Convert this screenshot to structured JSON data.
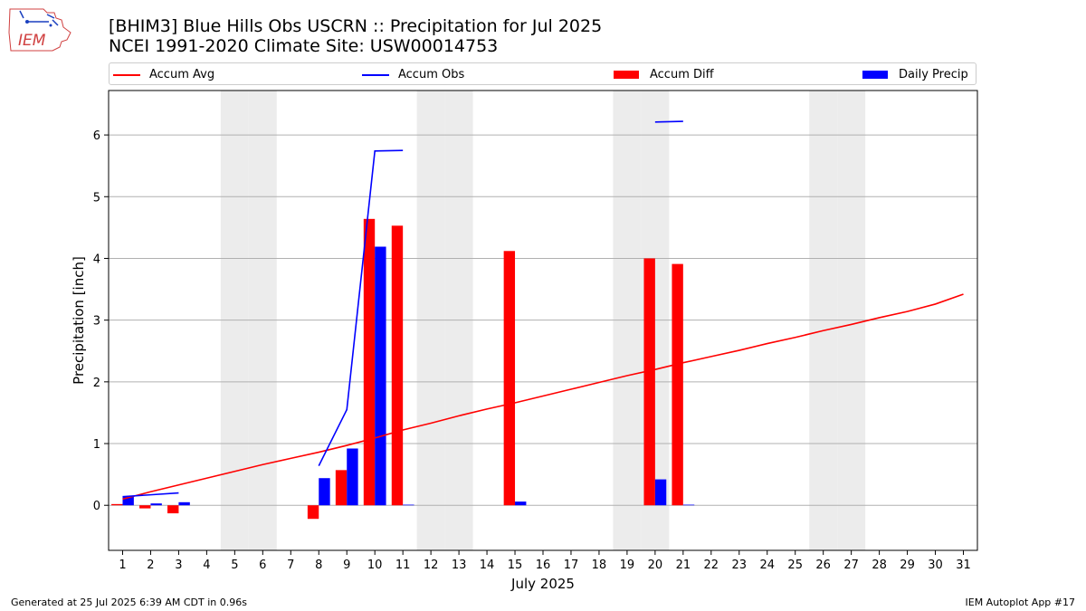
{
  "header": {
    "title_line1": "[BHIM3] Blue Hills Obs USCRN :: Precipitation for Jul 2025",
    "title_line2": "NCEI 1991-2020 Climate Site: USW00014753",
    "logo_text": "IEM"
  },
  "legend": {
    "accum_avg": "Accum Avg",
    "accum_obs": "Accum Obs",
    "accum_diff": "Accum Diff",
    "daily_precip": "Daily Precip"
  },
  "colors": {
    "avg": "#ff0000",
    "obs": "#0000ff",
    "diff": "#ff0000",
    "daily": "#0000ff",
    "weekend": "#ececec",
    "grid": "#b0b0b0"
  },
  "footer": {
    "left": "Generated at 25 Jul 2025 6:39 AM CDT in 0.96s",
    "right": "IEM Autoplot App #17"
  },
  "chart_data": {
    "type": "bar",
    "title": "[BHIM3] Blue Hills Obs USCRN :: Precipitation for Jul 2025",
    "xlabel": "July 2025",
    "ylabel": "Precipitation [inch]",
    "xlim": [
      0.5,
      31.5
    ],
    "ylim": [
      -0.73,
      6.72
    ],
    "yticks": [
      0,
      1,
      2,
      3,
      4,
      5,
      6
    ],
    "categories": [
      1,
      2,
      3,
      4,
      5,
      6,
      7,
      8,
      9,
      10,
      11,
      12,
      13,
      14,
      15,
      16,
      17,
      18,
      19,
      20,
      21,
      22,
      23,
      24,
      25,
      26,
      27,
      28,
      29,
      30,
      31
    ],
    "weekend_days": [
      5,
      6,
      12,
      13,
      19,
      20,
      26,
      27
    ],
    "series": [
      {
        "name": "Accum Diff",
        "type": "bar",
        "values": [
          0.02,
          -0.05,
          -0.13,
          0,
          0,
          0,
          0,
          -0.22,
          0.57,
          4.64,
          4.53,
          0,
          0,
          0,
          4.12,
          0,
          0,
          0,
          0,
          4.0,
          3.91,
          0,
          0,
          0,
          0,
          0,
          0,
          0,
          0,
          0,
          0
        ]
      },
      {
        "name": "Daily Precip",
        "type": "bar",
        "values": [
          0.14,
          0.03,
          0.05,
          0,
          0,
          0,
          0,
          0.44,
          0.92,
          4.19,
          0.01,
          0,
          0,
          0,
          0.06,
          0,
          0,
          0,
          0,
          0.42,
          0.01,
          0,
          0,
          0,
          0,
          0,
          0,
          0,
          0,
          0,
          0
        ]
      },
      {
        "name": "Accum Avg",
        "type": "line",
        "x": [
          1,
          2,
          3,
          4,
          5,
          6,
          7,
          8,
          9,
          10,
          11,
          12,
          13,
          14,
          15,
          16,
          17,
          18,
          19,
          20,
          21,
          22,
          23,
          24,
          25,
          26,
          27,
          28,
          29,
          30,
          31
        ],
        "values": [
          0.1,
          0.22,
          0.33,
          0.44,
          0.55,
          0.66,
          0.76,
          0.86,
          0.97,
          1.09,
          1.22,
          1.33,
          1.45,
          1.56,
          1.66,
          1.77,
          1.88,
          1.99,
          2.1,
          2.2,
          2.31,
          2.41,
          2.51,
          2.62,
          2.72,
          2.83,
          2.93,
          3.04,
          3.14,
          3.26,
          3.42
        ]
      },
      {
        "name": "Accum Obs",
        "type": "line",
        "segments": [
          {
            "x": [
              1,
              2,
              3
            ],
            "values": [
              0.14,
              0.17,
              0.2
            ]
          },
          {
            "x": [
              8,
              9,
              10,
              11
            ],
            "values": [
              0.64,
              1.55,
              5.74,
              5.75
            ]
          },
          {
            "x": [
              20,
              21
            ],
            "values": [
              6.21,
              6.22
            ]
          }
        ]
      }
    ]
  }
}
